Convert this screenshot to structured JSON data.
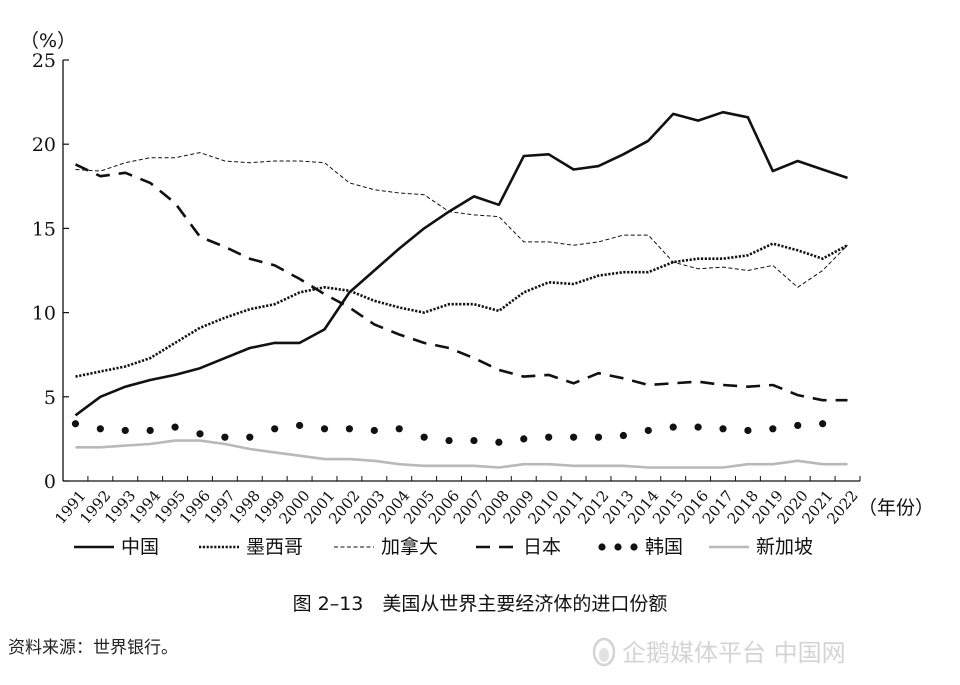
{
  "chart_data": {
    "type": "line",
    "ylabel": "（%）",
    "xlabel": "（年份）",
    "ylim": [
      0,
      25
    ],
    "yticks": [
      0,
      5,
      10,
      15,
      20,
      25
    ],
    "grid": false,
    "legend_position": "bottom",
    "x": [
      1991,
      1992,
      1993,
      1994,
      1995,
      1996,
      1997,
      1998,
      1999,
      2000,
      2001,
      2002,
      2003,
      2004,
      2005,
      2006,
      2007,
      2008,
      2009,
      2010,
      2011,
      2012,
      2013,
      2014,
      2015,
      2016,
      2017,
      2018,
      2019,
      2020,
      2021,
      2022
    ],
    "series": [
      {
        "name": "中国",
        "style": "solid-thick",
        "color": "#111111",
        "values": [
          3.9,
          5.0,
          5.6,
          6.0,
          6.3,
          6.7,
          7.3,
          7.9,
          8.2,
          8.2,
          9.0,
          11.2,
          12.5,
          13.8,
          15.0,
          16.0,
          16.9,
          16.4,
          19.3,
          19.4,
          18.5,
          18.7,
          19.4,
          20.2,
          21.8,
          21.4,
          21.9,
          21.6,
          18.4,
          19.0,
          18.5,
          18.0
        ]
      },
      {
        "name": "墨西哥",
        "style": "dotted-dense",
        "color": "#111111",
        "values": [
          6.2,
          6.5,
          6.8,
          7.3,
          8.2,
          9.1,
          9.7,
          10.2,
          10.5,
          11.2,
          11.5,
          11.3,
          10.7,
          10.3,
          10.0,
          10.5,
          10.5,
          10.1,
          11.2,
          11.8,
          11.7,
          12.2,
          12.4,
          12.4,
          13.0,
          13.2,
          13.2,
          13.4,
          14.1,
          13.7,
          13.2,
          14.0
        ]
      },
      {
        "name": "加拿大",
        "style": "dashed-thin",
        "color": "#111111",
        "values": [
          18.5,
          18.4,
          18.9,
          19.2,
          19.2,
          19.5,
          19.0,
          18.9,
          19.0,
          19.0,
          18.9,
          17.7,
          17.3,
          17.1,
          17.0,
          16.0,
          15.8,
          15.7,
          14.2,
          14.2,
          14.0,
          14.2,
          14.6,
          14.6,
          13.0,
          12.6,
          12.7,
          12.5,
          12.8,
          11.5,
          12.5,
          14.0
        ]
      },
      {
        "name": "日本",
        "style": "dashed-thick",
        "color": "#111111",
        "values": [
          18.8,
          18.1,
          18.3,
          17.7,
          16.5,
          14.5,
          13.9,
          13.2,
          12.8,
          12.0,
          11.1,
          10.3,
          9.3,
          8.7,
          8.2,
          7.9,
          7.3,
          6.6,
          6.2,
          6.3,
          5.8,
          6.4,
          6.1,
          5.7,
          5.8,
          5.9,
          5.7,
          5.6,
          5.7,
          5.1,
          4.8,
          4.8
        ]
      },
      {
        "name": "韩国",
        "style": "dots",
        "color": "#111111",
        "values": [
          3.4,
          3.1,
          3.0,
          3.0,
          3.2,
          2.8,
          2.6,
          2.6,
          3.1,
          3.3,
          3.1,
          3.1,
          3.0,
          3.1,
          2.6,
          2.4,
          2.4,
          2.3,
          2.5,
          2.6,
          2.6,
          2.6,
          2.7,
          3.0,
          3.2,
          3.2,
          3.1,
          3.0,
          3.1,
          3.3,
          3.4,
          null
        ]
      },
      {
        "name": "新加坡",
        "style": "solid-gray",
        "color": "#b9b9b9",
        "values": [
          2.0,
          2.0,
          2.1,
          2.2,
          2.4,
          2.4,
          2.2,
          1.9,
          1.7,
          1.5,
          1.3,
          1.3,
          1.2,
          1.0,
          0.9,
          0.9,
          0.9,
          0.8,
          1.0,
          1.0,
          0.9,
          0.9,
          0.9,
          0.8,
          0.8,
          0.8,
          0.8,
          1.0,
          1.0,
          1.2,
          1.0,
          1.0
        ]
      }
    ],
    "caption": "图 2–13　美国从世界主要经济体的进口份额",
    "source": "资料来源：世界银行。"
  },
  "watermark": {
    "text": "企鹅媒体平台 中国网",
    "icon": "penguin-logo-icon"
  }
}
